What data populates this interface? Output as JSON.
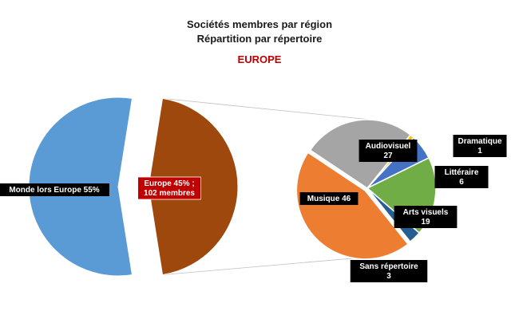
{
  "chart_data": {
    "type": "pie-of-pie",
    "title": "Sociétés membres par région",
    "subtitle": "Répartition par répertoire",
    "region": "EUROPE",
    "main_pie": {
      "slices": [
        {
          "label": "Monde lors Europe  55%",
          "value": 55,
          "color": "#5b9bd5"
        },
        {
          "label_lines": [
            "Europe 45% ;",
            "102 membres"
          ],
          "value": 45,
          "color": "#9e480e"
        }
      ]
    },
    "breakdown_pie": {
      "slices": [
        {
          "name": "Audiovisuel",
          "value": 27,
          "color": "#a5a5a5"
        },
        {
          "name": "Dramatique",
          "value": 1,
          "color": "#ffc000"
        },
        {
          "name": "Littéraire",
          "value": 6,
          "color": "#4472c4"
        },
        {
          "name": "Arts visuels",
          "value": 19,
          "color": "#70ad47"
        },
        {
          "name": "Sans répertoire",
          "value": 3,
          "color": "#255e91"
        },
        {
          "name": "Musique",
          "value": 46,
          "color": "#ed7d31"
        }
      ]
    }
  }
}
